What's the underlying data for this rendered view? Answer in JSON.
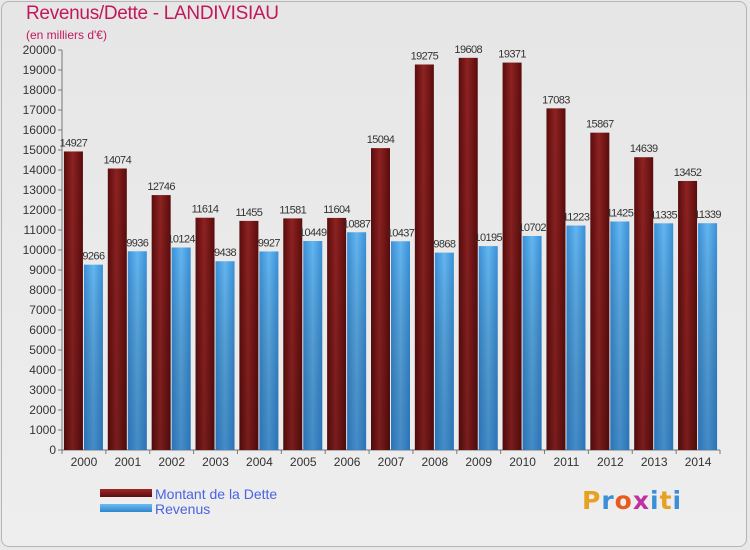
{
  "header": {
    "title": "Revenus/Dette - LANDIVISIAU",
    "subtitle": "(en milliers d'€)"
  },
  "legend": {
    "items": [
      {
        "label": "Montant de la Dette",
        "color": "#8b1a1a"
      },
      {
        "label": "Revenus",
        "color": "#4aa3e8"
      }
    ]
  },
  "logo": {
    "text": "Proxiti",
    "colors": [
      "#e8a020",
      "#3b8fd6",
      "#e85a20",
      "#c030a0",
      "#3b8fd6",
      "#e8a020",
      "#3b8fd6"
    ]
  },
  "chart_data": {
    "type": "bar",
    "categories": [
      "2000",
      "2001",
      "2002",
      "2003",
      "2004",
      "2005",
      "2006",
      "2007",
      "2008",
      "2009",
      "2010",
      "2011",
      "2012",
      "2013",
      "2014"
    ],
    "series": [
      {
        "name": "Montant de la Dette",
        "color": "#7a1515",
        "values": [
          14927,
          14074,
          12746,
          11614,
          11455,
          11581,
          11604,
          15094,
          19275,
          19608,
          19371,
          17083,
          15867,
          14639,
          13452
        ],
        "labels": [
          "14927",
          "14074",
          "12746",
          "11614",
          "11455",
          "11581",
          "11604",
          "15094",
          "19275",
          "19608",
          "19371",
          "17083",
          "15867",
          "14639",
          "13452"
        ]
      },
      {
        "name": "Revenus",
        "color": "#4aa3e8",
        "values": [
          9266,
          9936,
          10124,
          9438,
          9927,
          10449,
          10887,
          10437,
          9868,
          10195,
          10702,
          11223,
          11425,
          11335,
          11339
        ],
        "labels": [
          "9266",
          "9936",
          "10124",
          "9438",
          "9927",
          "10449",
          "10887",
          "10437",
          "9868",
          "10195",
          "10702",
          "11223",
          "11425",
          "11335",
          "11339"
        ]
      }
    ],
    "ylim": [
      0,
      20000
    ],
    "ytick_step": 1000,
    "ytick_labels": [
      "0",
      "1000",
      "2000",
      "3000",
      "4000",
      "5000",
      "6000",
      "7000",
      "8000",
      "9000",
      "10000",
      "11000",
      "12000",
      "13000",
      "14000",
      "15000",
      "16000",
      "17000",
      "18000",
      "19000",
      "20000"
    ],
    "grid": false,
    "legend_position": "bottom-left"
  }
}
